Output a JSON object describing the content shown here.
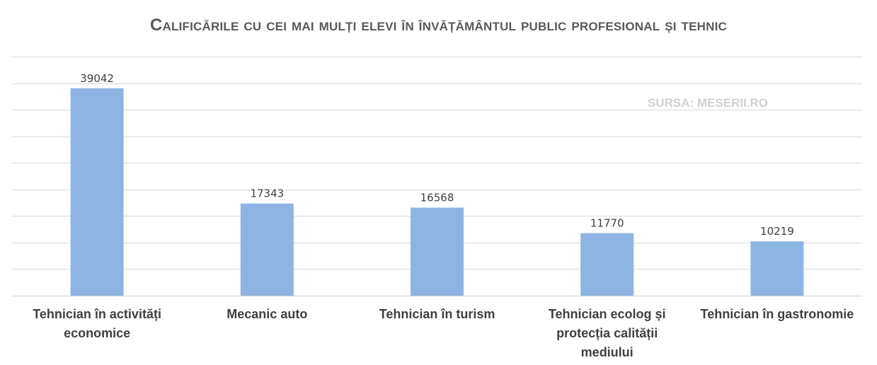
{
  "chart_data": {
    "type": "bar",
    "title": "Calificările cu cei mai mulți elevi în învățământul public profesional și tehnic",
    "annotation": "SURSA: MESERII.RO",
    "categories": [
      "Tehnician în activități economice",
      "Mecanic auto",
      "Tehnician în turism",
      "Tehnician ecolog și protecția calității mediului",
      "Tehnician în gastronomie"
    ],
    "values": [
      39042,
      17343,
      16568,
      11770,
      10219
    ],
    "ylim": [
      0,
      45000
    ],
    "grid": true,
    "data_labels": true,
    "bar_color": "#8eb4e3"
  }
}
